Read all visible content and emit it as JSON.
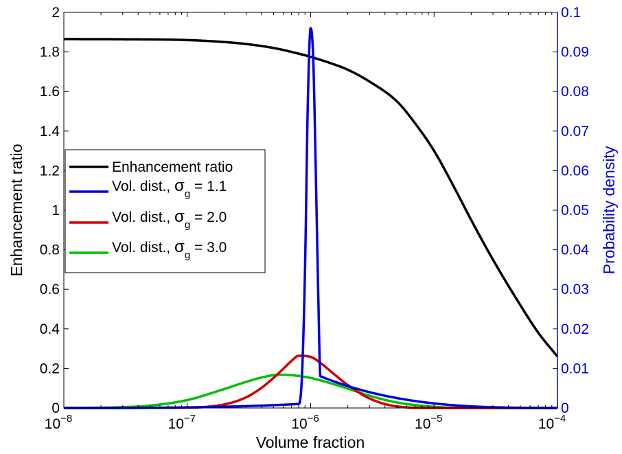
{
  "chart_data": {
    "type": "line",
    "xlabel": "Volume fraction",
    "ylabel_left": "Enhancement ratio",
    "ylabel_right": "Probability density",
    "x_scale": "log",
    "xlim": [
      1e-08,
      0.0001
    ],
    "ylim_left": [
      0,
      2
    ],
    "ylim_right": [
      0,
      0.1
    ],
    "x_ticks": [
      {
        "value": 1e-08,
        "base": "10",
        "exp": "−8"
      },
      {
        "value": 1e-07,
        "base": "10",
        "exp": "−7"
      },
      {
        "value": 1e-06,
        "base": "10",
        "exp": "−6"
      },
      {
        "value": 1e-05,
        "base": "10",
        "exp": "−5"
      },
      {
        "value": 0.0001,
        "base": "10",
        "exp": "−4"
      }
    ],
    "y_left_ticks": [
      "0",
      "0.2",
      "0.4",
      "0.6",
      "0.8",
      "1",
      "1.2",
      "1.4",
      "1.6",
      "1.8",
      "2"
    ],
    "y_right_ticks": [
      "0",
      "0.01",
      "0.02",
      "0.03",
      "0.04",
      "0.05",
      "0.06",
      "0.07",
      "0.08",
      "0.09",
      "0.1"
    ],
    "grid": false,
    "legend_position": "center-left",
    "series": [
      {
        "name": "Enhancement ratio",
        "axis": "left",
        "color": "#000000",
        "x": [
          1e-08,
          3e-08,
          1e-07,
          2e-07,
          3e-07,
          5e-07,
          7e-07,
          1e-06,
          1.5e-06,
          2e-06,
          3e-06,
          5e-06,
          7e-06,
          1e-05,
          1.5e-05,
          2e-05,
          3e-05,
          5e-05,
          7e-05,
          0.0001
        ],
        "y": [
          1.865,
          1.864,
          1.86,
          1.85,
          1.84,
          1.82,
          1.8,
          1.775,
          1.74,
          1.71,
          1.65,
          1.55,
          1.44,
          1.3,
          1.1,
          0.95,
          0.75,
          0.52,
          0.38,
          0.26
        ]
      },
      {
        "name_prefix": "Vol. dist., ",
        "symbol": "σ",
        "subscript": "g",
        "name_suffix": " = 1.1",
        "axis": "right",
        "color": "#0000e0",
        "x": [
          1e-08,
          8e-07,
          8.5e-07,
          9e-07,
          9.5e-07,
          1e-06,
          1.05e-06,
          1.1e-06,
          1.15e-06,
          1.2e-06,
          0.0001
        ],
        "y": [
          0,
          0.001,
          0.008,
          0.035,
          0.078,
          0.096,
          0.088,
          0.06,
          0.03,
          0.008,
          0
        ]
      },
      {
        "name_prefix": "Vol. dist., ",
        "symbol": "σ",
        "subscript": "g",
        "name_suffix": " = 2.0",
        "axis": "right",
        "color": "#d00000",
        "x": [
          1e-08,
          1e-07,
          2e-07,
          3e-07,
          4e-07,
          5e-07,
          6e-07,
          7e-07,
          8e-07,
          1e-06,
          1.2e-06,
          1.5e-06,
          2e-06,
          3e-06,
          5e-06,
          1e-05,
          0.0001
        ],
        "y": [
          0,
          0.0001,
          0.0009,
          0.0027,
          0.0051,
          0.0076,
          0.0099,
          0.0119,
          0.0132,
          0.0129,
          0.0114,
          0.0089,
          0.0058,
          0.0024,
          0.0004,
          0,
          0
        ]
      },
      {
        "name_prefix": "Vol. dist., ",
        "symbol": "σ",
        "subscript": "g",
        "name_suffix": " = 3.0",
        "axis": "right",
        "color": "#00c000",
        "x": [
          1e-08,
          3e-08,
          5e-08,
          1e-07,
          2e-07,
          3e-07,
          4e-07,
          5.5e-07,
          7e-07,
          1e-06,
          1.5e-06,
          2e-06,
          3e-06,
          5e-06,
          1e-05,
          2e-05,
          0.0001
        ],
        "y": [
          0,
          0.0002,
          0.0006,
          0.002,
          0.0048,
          0.0066,
          0.0077,
          0.0084,
          0.0083,
          0.0076,
          0.0061,
          0.0049,
          0.0031,
          0.0014,
          0.0003,
          0,
          0
        ]
      }
    ]
  }
}
